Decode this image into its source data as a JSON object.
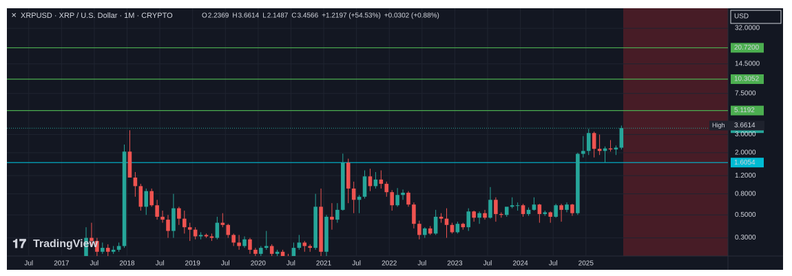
{
  "header": {
    "title": "XRPUSD · XRP / U.S. Dollar · 1M · CRYPTO",
    "o": "O",
    "h": "H",
    "l": "L",
    "c": "C",
    "change": "+1.2197 (+54.53%)",
    "change2": "+0.0302 (+0.88%)",
    "currency": "USD",
    "high_label": "High",
    "watermark": "TradingView"
  },
  "chart_data": {
    "type": "candlestick",
    "log_scale": true,
    "up_color": "#26a69a",
    "down_color": "#ef5350",
    "x": [
      "2017-05",
      "2017-06",
      "2017-07",
      "2017-08",
      "2017-09",
      "2017-10",
      "2017-11",
      "2017-12",
      "2018-01",
      "2018-02",
      "2018-03",
      "2018-04",
      "2018-05",
      "2018-06",
      "2018-07",
      "2018-08",
      "2018-09",
      "2018-10",
      "2018-11",
      "2018-12",
      "2019-01",
      "2019-02",
      "2019-03",
      "2019-04",
      "2019-05",
      "2019-06",
      "2019-07",
      "2019-08",
      "2019-09",
      "2019-10",
      "2019-11",
      "2019-12",
      "2020-01",
      "2020-02",
      "2020-03",
      "2020-04",
      "2020-05",
      "2020-06",
      "2020-07",
      "2020-08",
      "2020-09",
      "2020-10",
      "2020-11",
      "2020-12",
      "2021-01",
      "2021-02",
      "2021-03",
      "2021-04",
      "2021-05",
      "2021-06",
      "2021-07",
      "2021-08",
      "2021-09",
      "2021-10",
      "2021-11",
      "2021-12",
      "2022-01",
      "2022-02",
      "2022-03",
      "2022-04",
      "2022-05",
      "2022-06",
      "2022-07",
      "2022-08",
      "2022-09",
      "2022-10",
      "2022-11",
      "2022-12",
      "2023-01",
      "2023-02",
      "2023-03",
      "2023-04",
      "2023-05",
      "2023-06",
      "2023-07",
      "2023-08",
      "2023-09",
      "2023-10",
      "2023-11",
      "2023-12",
      "2024-01",
      "2024-02",
      "2024-03",
      "2024-04",
      "2024-05",
      "2024-06",
      "2024-07",
      "2024-08",
      "2024-09",
      "2024-10",
      "2024-11",
      "2024-12",
      "2025-01",
      "2025-02",
      "2025-03",
      "2025-04",
      "2025-05",
      "2025-06",
      "2025-07"
    ],
    "open": [
      0.2,
      0.3,
      0.28,
      0.22,
      0.24,
      0.22,
      0.23,
      0.25,
      2.05,
      1.15,
      0.95,
      0.6,
      0.85,
      0.62,
      0.48,
      0.45,
      0.35,
      0.58,
      0.46,
      0.38,
      0.36,
      0.31,
      0.32,
      0.31,
      0.3,
      0.42,
      0.4,
      0.32,
      0.27,
      0.25,
      0.29,
      0.23,
      0.21,
      0.24,
      0.25,
      0.21,
      0.22,
      0.2,
      0.18,
      0.24,
      0.27,
      0.25,
      0.24,
      0.6,
      0.22,
      0.48,
      0.45,
      0.56,
      1.6,
      0.9,
      0.7,
      0.75,
      1.18,
      0.95,
      1.1,
      1.0,
      0.83,
      0.62,
      0.78,
      0.82,
      0.63,
      0.41,
      0.32,
      0.37,
      0.33,
      0.48,
      0.46,
      0.4,
      0.34,
      0.41,
      0.38,
      0.54,
      0.47,
      0.52,
      0.47,
      0.7,
      0.51,
      0.5,
      0.6,
      0.62,
      0.62,
      0.51,
      0.56,
      0.63,
      0.51,
      0.53,
      0.48,
      0.62,
      0.56,
      0.63,
      0.52,
      1.95,
      2.08,
      3.1,
      2.18,
      2.08,
      2.2,
      2.15,
      2.2369
    ],
    "high": [
      0.38,
      0.42,
      0.3,
      0.27,
      0.26,
      0.25,
      0.27,
      2.4,
      3.3,
      1.3,
      1.0,
      0.9,
      0.9,
      0.7,
      0.55,
      0.5,
      0.8,
      0.6,
      0.55,
      0.42,
      0.38,
      0.34,
      0.33,
      0.33,
      0.48,
      0.52,
      0.41,
      0.33,
      0.32,
      0.31,
      0.3,
      0.24,
      0.25,
      0.35,
      0.26,
      0.23,
      0.23,
      0.21,
      0.27,
      0.32,
      0.28,
      0.26,
      0.8,
      0.9,
      0.5,
      0.65,
      0.65,
      1.96,
      1.75,
      1.05,
      0.78,
      1.35,
      1.4,
      1.3,
      1.35,
      1.05,
      0.87,
      0.91,
      0.88,
      0.85,
      0.66,
      0.44,
      0.38,
      0.39,
      0.56,
      0.52,
      0.58,
      0.42,
      0.43,
      0.42,
      0.58,
      0.55,
      0.54,
      0.56,
      0.93,
      0.74,
      0.53,
      0.55,
      0.74,
      0.66,
      0.64,
      0.59,
      0.74,
      0.64,
      0.55,
      0.54,
      0.64,
      0.64,
      0.66,
      0.64,
      2.0,
      2.9,
      3.4,
      3.2,
      3.0,
      2.3,
      2.65,
      2.35,
      3.6614
    ],
    "low": [
      0.2,
      0.25,
      0.2,
      0.21,
      0.2,
      0.21,
      0.22,
      0.24,
      1.2,
      0.75,
      0.55,
      0.5,
      0.6,
      0.45,
      0.42,
      0.3,
      0.3,
      0.4,
      0.33,
      0.28,
      0.29,
      0.29,
      0.3,
      0.28,
      0.29,
      0.38,
      0.3,
      0.25,
      0.23,
      0.24,
      0.21,
      0.19,
      0.2,
      0.23,
      0.15,
      0.19,
      0.19,
      0.17,
      0.17,
      0.23,
      0.22,
      0.22,
      0.23,
      0.2,
      0.2,
      0.36,
      0.42,
      0.55,
      0.65,
      0.52,
      0.52,
      0.72,
      0.85,
      0.9,
      0.9,
      0.75,
      0.55,
      0.6,
      0.7,
      0.6,
      0.37,
      0.29,
      0.3,
      0.32,
      0.32,
      0.42,
      0.3,
      0.33,
      0.33,
      0.36,
      0.35,
      0.43,
      0.41,
      0.45,
      0.46,
      0.43,
      0.47,
      0.48,
      0.58,
      0.55,
      0.48,
      0.49,
      0.55,
      0.42,
      0.49,
      0.42,
      0.47,
      0.43,
      0.53,
      0.49,
      0.5,
      1.8,
      1.9,
      1.8,
      1.9,
      1.6,
      2.05,
      1.9,
      2.1487
    ],
    "close": [
      0.3,
      0.28,
      0.22,
      0.24,
      0.22,
      0.23,
      0.25,
      2.05,
      1.15,
      0.95,
      0.6,
      0.85,
      0.62,
      0.48,
      0.45,
      0.35,
      0.58,
      0.46,
      0.38,
      0.36,
      0.31,
      0.32,
      0.31,
      0.3,
      0.42,
      0.4,
      0.32,
      0.27,
      0.25,
      0.29,
      0.23,
      0.21,
      0.24,
      0.25,
      0.21,
      0.22,
      0.2,
      0.18,
      0.24,
      0.27,
      0.25,
      0.24,
      0.6,
      0.22,
      0.48,
      0.45,
      0.56,
      1.6,
      0.9,
      0.7,
      0.75,
      1.18,
      0.95,
      1.1,
      1.0,
      0.83,
      0.62,
      0.78,
      0.82,
      0.63,
      0.41,
      0.32,
      0.37,
      0.33,
      0.48,
      0.46,
      0.4,
      0.34,
      0.41,
      0.38,
      0.54,
      0.47,
      0.52,
      0.47,
      0.7,
      0.51,
      0.5,
      0.6,
      0.62,
      0.62,
      0.51,
      0.56,
      0.63,
      0.51,
      0.53,
      0.48,
      0.62,
      0.56,
      0.63,
      0.52,
      1.95,
      2.08,
      3.1,
      2.18,
      2.08,
      2.2,
      2.15,
      2.24,
      3.4566
    ],
    "xlim": [
      "2016-03",
      "2027-03"
    ],
    "xticks": [
      {
        "value": "2016-07",
        "label": "Jul"
      },
      {
        "value": "2017-01",
        "label": "2017"
      },
      {
        "value": "2017-07",
        "label": "Jul"
      },
      {
        "value": "2018-01",
        "label": "2018"
      },
      {
        "value": "2018-07",
        "label": "Jul"
      },
      {
        "value": "2019-01",
        "label": "2019"
      },
      {
        "value": "2019-07",
        "label": "Jul"
      },
      {
        "value": "2020-01",
        "label": "2020"
      },
      {
        "value": "2020-07",
        "label": "Jul"
      },
      {
        "value": "2021-01",
        "label": "2021"
      },
      {
        "value": "2021-07",
        "label": "Jul"
      },
      {
        "value": "2022-01",
        "label": "2022"
      },
      {
        "value": "2022-07",
        "label": "Jul"
      },
      {
        "value": "2023-01",
        "label": "2023"
      },
      {
        "value": "2023-07",
        "label": "Jul"
      },
      {
        "value": "2024-01",
        "label": "2024"
      },
      {
        "value": "2024-07",
        "label": "Jul"
      },
      {
        "value": "2025-01",
        "label": "2025"
      }
    ],
    "ylim": [
      0.2,
      50
    ],
    "yticks": [
      {
        "value": 0.3,
        "label": "0.3000"
      },
      {
        "value": 0.5,
        "label": "0.5000"
      },
      {
        "value": 0.8,
        "label": "0.8000"
      },
      {
        "value": 1.2,
        "label": "1.2000"
      },
      {
        "value": 2,
        "label": "2.0000"
      },
      {
        "value": 3,
        "label": "3.0000"
      },
      {
        "value": 7.5,
        "label": "7.5000"
      },
      {
        "value": 14.5,
        "label": "14.5000"
      },
      {
        "value": 32,
        "label": "32.0000"
      }
    ],
    "grid": true,
    "levels": [
      {
        "value": 20.72,
        "label": "20.7200",
        "color": "#4caf50"
      },
      {
        "value": 10.3052,
        "label": "10.3052",
        "color": "#4caf50"
      },
      {
        "value": 5.1192,
        "label": "5.1192",
        "color": "#4caf50"
      },
      {
        "value": 1.6054,
        "label": "1.6054",
        "color": "#00bcd4"
      }
    ]
  }
}
